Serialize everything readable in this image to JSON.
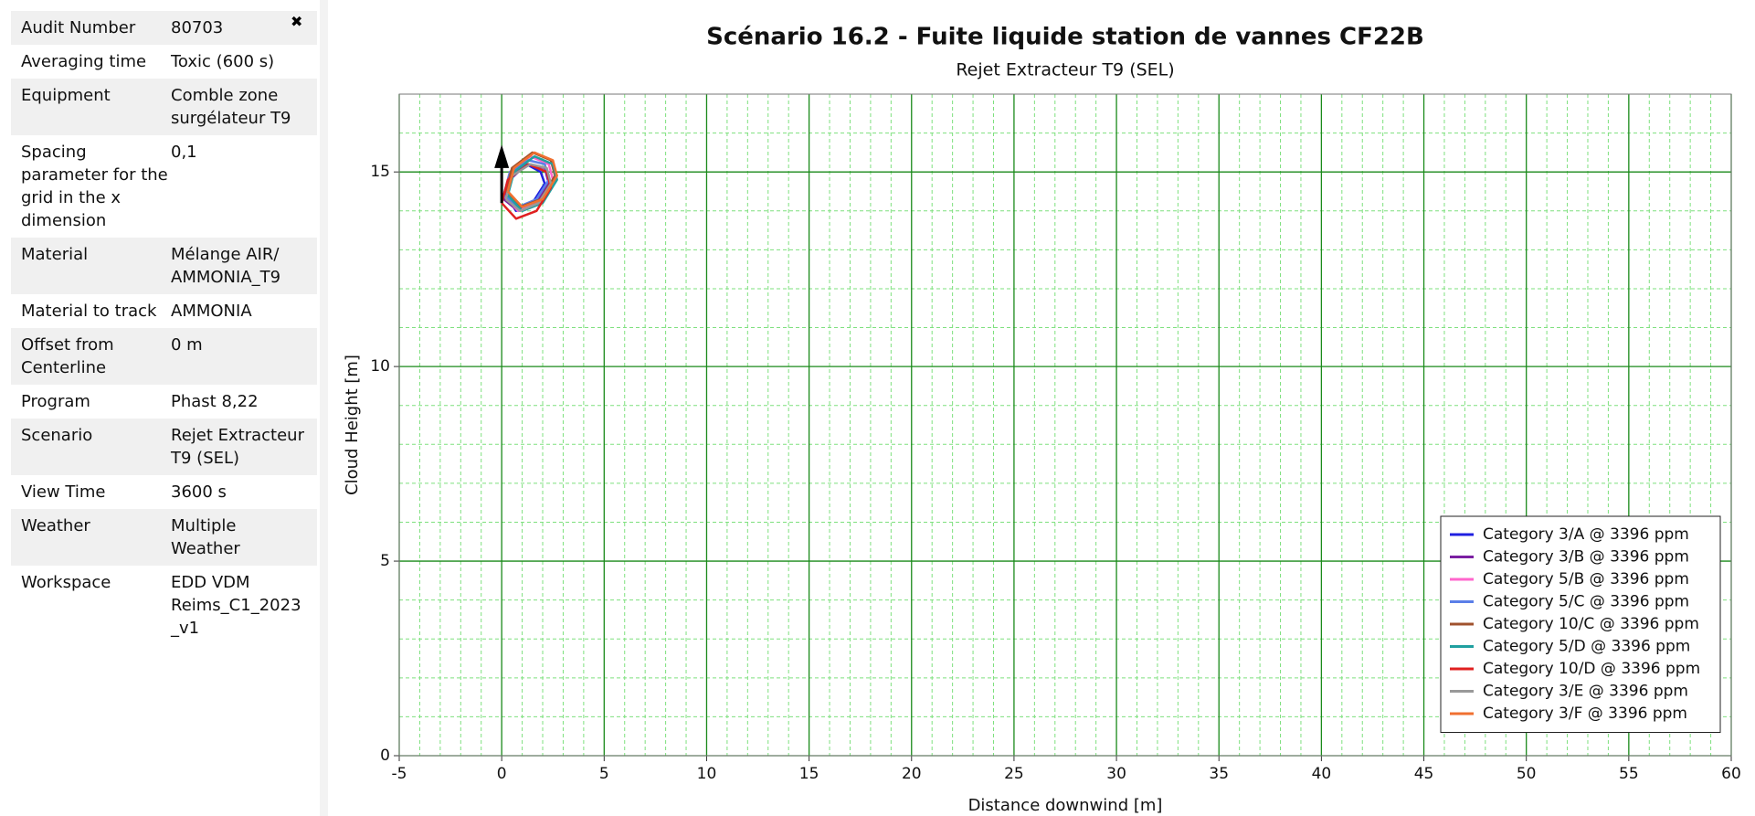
{
  "panel": {
    "close": "✖",
    "rows": [
      {
        "label": "Audit Number",
        "value": "80703"
      },
      {
        "label": "Averaging time",
        "value": "Toxic (600 s)"
      },
      {
        "label": "Equipment",
        "value": "Comble zone surgélateur T9"
      },
      {
        "label": "Spacing parameter for the grid in the x dimension",
        "value": "0,1"
      },
      {
        "label": "Material",
        "value": "Mélange AIR/ AMMONIA_T9"
      },
      {
        "label": "Material to track",
        "value": "AMMONIA"
      },
      {
        "label": "Offset from Centerline",
        "value": "0 m"
      },
      {
        "label": "Program",
        "value": "Phast 8,22"
      },
      {
        "label": "Scenario",
        "value": "Rejet Extracteur T9 (SEL)"
      },
      {
        "label": "View Time",
        "value": "3600 s"
      },
      {
        "label": "Weather",
        "value": "Multiple Weather"
      },
      {
        "label": "Workspace",
        "value": "EDD VDM Reims_C1_2023_v1"
      }
    ]
  },
  "chart_data": {
    "type": "line",
    "title": "Scénario 16.2 - Fuite liquide station de vannes CF22B",
    "subtitle": "Rejet Extracteur T9 (SEL)",
    "xlabel": "Distance downwind [m]",
    "ylabel": "Cloud Height [m]",
    "xlim": [
      -5,
      60
    ],
    "ylim": [
      0,
      17
    ],
    "xticks": [
      -5,
      0,
      5,
      10,
      15,
      20,
      25,
      30,
      35,
      40,
      45,
      50,
      55,
      60
    ],
    "yticks": [
      0,
      5,
      10,
      15
    ],
    "xminorticks": [
      -4,
      -3,
      -2,
      -1,
      1,
      2,
      3,
      4,
      6,
      7,
      8,
      9,
      11,
      12,
      13,
      14,
      16,
      17,
      18,
      19,
      21,
      22,
      23,
      24,
      26,
      27,
      28,
      29,
      31,
      32,
      33,
      34,
      36,
      37,
      38,
      39,
      41,
      42,
      43,
      44,
      46,
      47,
      48,
      49,
      51,
      52,
      53,
      54,
      56,
      57,
      58,
      59
    ],
    "yminorticks": [
      1,
      2,
      3,
      4,
      6,
      7,
      8,
      9,
      11,
      12,
      13,
      14,
      16
    ],
    "grid": true,
    "legend": "lower right",
    "series": [
      {
        "name": "Category 3/A @ 3396 ppm",
        "color": "#2020e0",
        "x": [
          0.2,
          0.7,
          1.5,
          2.1,
          1.9,
          1.2,
          0.4,
          0.2
        ],
        "values": [
          14.4,
          14.0,
          14.2,
          14.7,
          15.0,
          15.2,
          14.8,
          14.4
        ]
      },
      {
        "name": "Category 3/B @ 3396 ppm",
        "color": "#7b1fa2",
        "x": [
          0.1,
          0.8,
          1.7,
          2.3,
          2.1,
          1.3,
          0.4,
          0.1
        ],
        "values": [
          14.3,
          14.0,
          14.2,
          14.7,
          15.1,
          15.2,
          14.9,
          14.3
        ]
      },
      {
        "name": "Category 5/B @ 3396 ppm",
        "color": "#ff66cc",
        "x": [
          0.1,
          0.8,
          1.8,
          2.5,
          2.3,
          1.4,
          0.4,
          0.1
        ],
        "values": [
          14.4,
          14.0,
          14.2,
          14.8,
          15.2,
          15.4,
          15.0,
          14.4
        ]
      },
      {
        "name": "Category 5/C @ 3396 ppm",
        "color": "#5b7fe8",
        "x": [
          0.1,
          0.8,
          1.7,
          2.3,
          2.1,
          1.3,
          0.4,
          0.1
        ],
        "values": [
          14.4,
          14.1,
          14.3,
          14.8,
          15.2,
          15.3,
          15.0,
          14.4
        ]
      },
      {
        "name": "Category 10/C @ 3396 ppm",
        "color": "#a0522d",
        "x": [
          0.2,
          0.9,
          1.9,
          2.6,
          2.4,
          1.5,
          0.5,
          0.2
        ],
        "values": [
          14.5,
          14.1,
          14.3,
          14.9,
          15.3,
          15.5,
          15.1,
          14.5
        ]
      },
      {
        "name": "Category 5/D @ 3396 ppm",
        "color": "#20a0a0",
        "x": [
          0.3,
          1.0,
          2.0,
          2.7,
          2.5,
          1.6,
          0.6,
          0.3
        ],
        "values": [
          14.4,
          14.0,
          14.2,
          14.8,
          15.2,
          15.4,
          15.0,
          14.4
        ]
      },
      {
        "name": "Category 10/D @ 3396 ppm",
        "color": "#e02020",
        "x": [
          0,
          0.7,
          1.7,
          2.4,
          2.2,
          1.3,
          0.3,
          0
        ],
        "values": [
          14.2,
          13.8,
          14.0,
          14.6,
          15.0,
          15.2,
          14.8,
          14.2
        ]
      },
      {
        "name": "Category 3/E @ 3396 ppm",
        "color": "#999999",
        "x": [
          0.2,
          0.9,
          1.8,
          2.4,
          2.2,
          1.4,
          0.5,
          0.2
        ],
        "values": [
          14.3,
          14.0,
          14.2,
          14.7,
          15.1,
          15.2,
          14.9,
          14.3
        ]
      },
      {
        "name": "Category 3/F @ 3396 ppm",
        "color": "#f07030",
        "x": [
          0.3,
          1.0,
          2.0,
          2.7,
          2.5,
          1.6,
          0.6,
          0.3
        ],
        "values": [
          14.5,
          14.1,
          14.3,
          14.9,
          15.3,
          15.5,
          15.1,
          14.5
        ]
      }
    ]
  }
}
